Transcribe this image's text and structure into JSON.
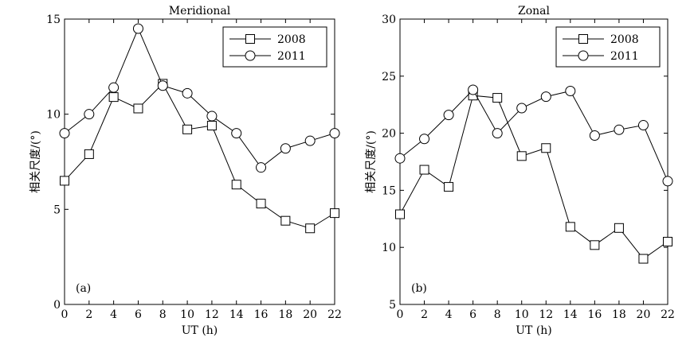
{
  "chart_data": [
    {
      "type": "line",
      "title": "Meridional",
      "xlabel": "UT (h)",
      "ylabel": "相关尺度/(°)",
      "panel_label": "(a)",
      "xlim": [
        0,
        22
      ],
      "ylim": [
        0,
        15
      ],
      "xticks": [
        0,
        2,
        4,
        6,
        8,
        10,
        12,
        14,
        16,
        18,
        20,
        22
      ],
      "yticks": [
        0,
        5,
        10,
        15
      ],
      "grid": false,
      "legend": "top-right",
      "x": [
        0,
        2,
        4,
        6,
        8,
        10,
        12,
        14,
        16,
        18,
        20,
        22
      ],
      "series": [
        {
          "name": "2008",
          "marker": "square",
          "values": [
            6.5,
            7.9,
            10.9,
            10.3,
            11.6,
            9.2,
            9.4,
            6.3,
            5.3,
            4.4,
            4.0,
            4.8
          ]
        },
        {
          "name": "2011",
          "marker": "circle",
          "values": [
            9.0,
            10.0,
            11.4,
            14.5,
            11.5,
            11.1,
            9.9,
            9.0,
            7.2,
            8.2,
            8.6,
            9.0
          ]
        }
      ]
    },
    {
      "type": "line",
      "title": "Zonal",
      "xlabel": "UT (h)",
      "ylabel": "相关尺度/(°)",
      "panel_label": "(b)",
      "xlim": [
        0,
        22
      ],
      "ylim": [
        5,
        30
      ],
      "xticks": [
        0,
        2,
        4,
        6,
        8,
        10,
        12,
        14,
        16,
        18,
        20,
        22
      ],
      "yticks": [
        5,
        10,
        15,
        20,
        25,
        30
      ],
      "grid": false,
      "legend": "top-right",
      "x": [
        0,
        2,
        4,
        6,
        8,
        10,
        12,
        14,
        16,
        18,
        20,
        22
      ],
      "series": [
        {
          "name": "2008",
          "marker": "square",
          "values": [
            12.9,
            16.8,
            15.3,
            23.3,
            23.1,
            18.0,
            18.7,
            11.8,
            10.2,
            11.7,
            9.0,
            10.5
          ]
        },
        {
          "name": "2011",
          "marker": "circle",
          "values": [
            17.8,
            19.5,
            21.6,
            23.8,
            20.0,
            22.2,
            23.2,
            23.7,
            19.8,
            20.3,
            20.7,
            15.8
          ]
        }
      ]
    }
  ]
}
